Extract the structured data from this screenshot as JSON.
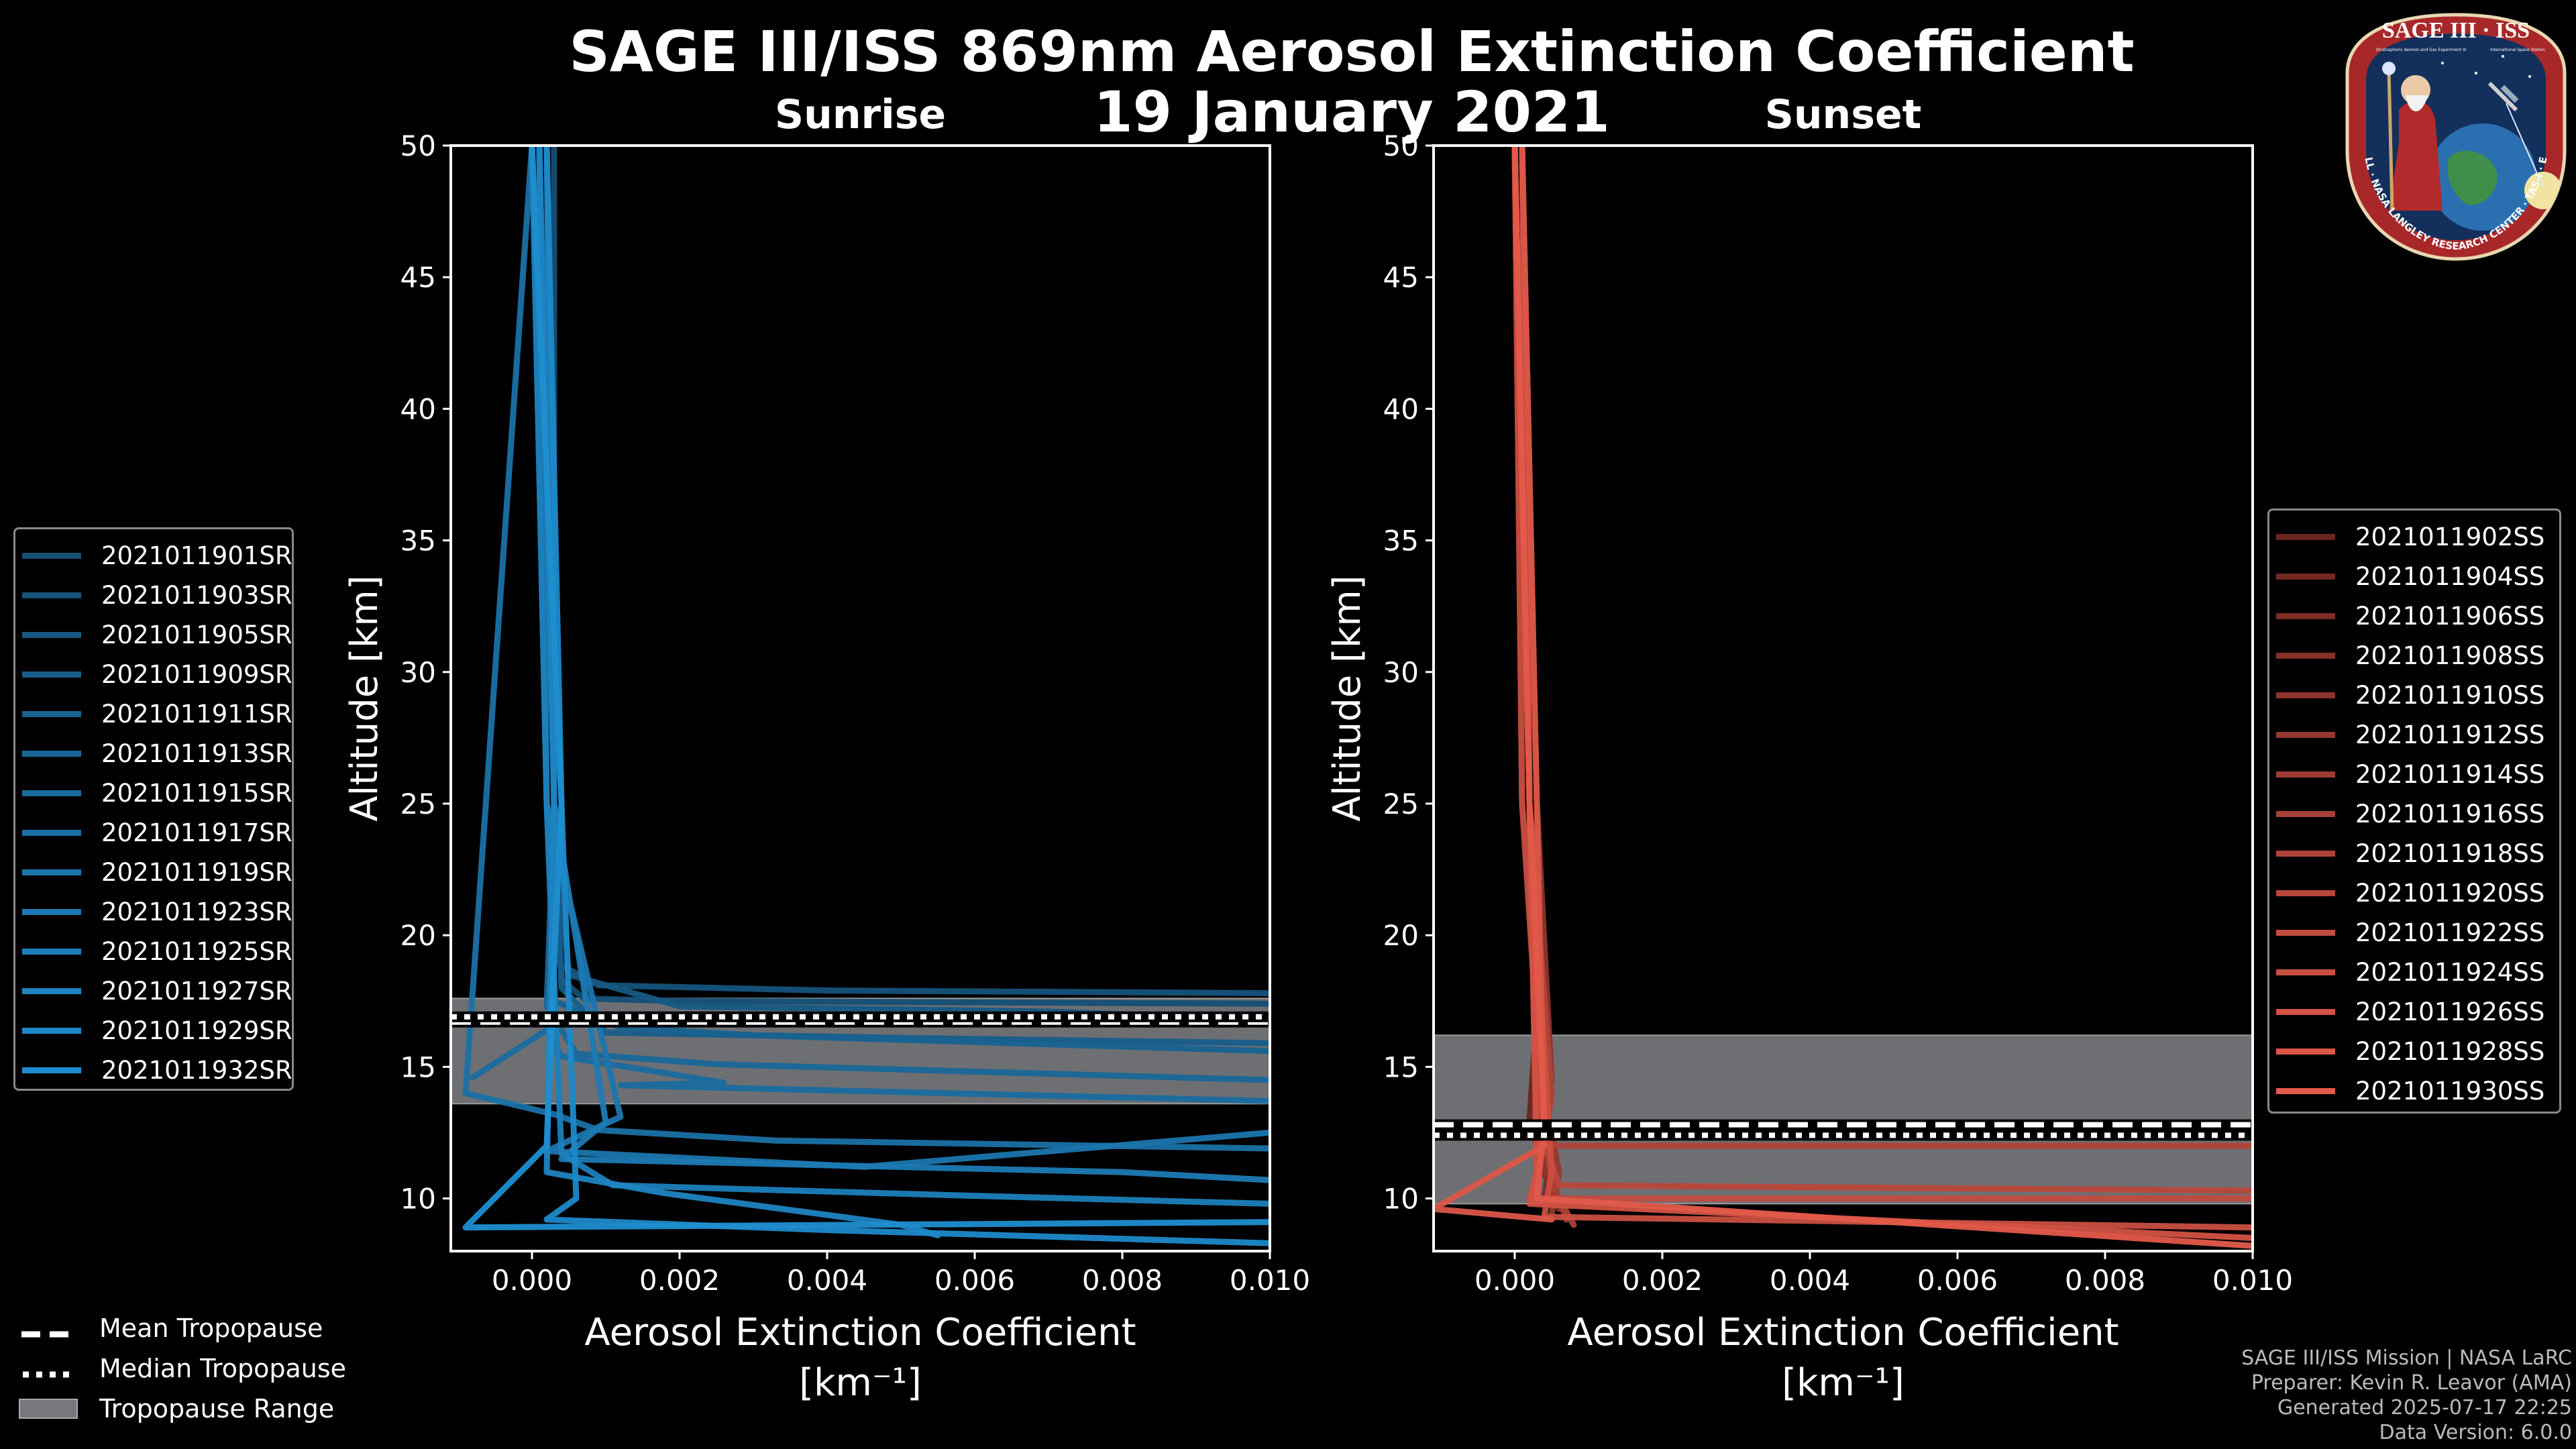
{
  "header": {
    "title": "SAGE III/ISS 869nm Aerosol Extinction Coefficient",
    "date": "19 January 2021"
  },
  "credits": {
    "line1": "SAGE III/ISS Mission | NASA LaRC",
    "line2": "Preparer: Kevin R. Leavor (AMA)",
    "line3": "Generated 2025-07-17 22:25",
    "line4": "Data Version: 6.0.0"
  },
  "logo": {
    "name": "SAGE III · ISS",
    "ring_text": "BALL · NASA LANGLEY RESEARCH CENTER · TAS-I · ESA",
    "small_left": "Stratospheric Aerosol and Gas Experiment III",
    "small_right": "International Space Station"
  },
  "colors": {
    "background": "#000000",
    "sunrise_line": "#1f8ed0",
    "sunset_line": "#e35a4a",
    "tropopause_band": "#6e6f73"
  },
  "bottom_legend": {
    "mean": "Mean Tropopause",
    "median": "Median Tropopause",
    "range": "Tropopause Range"
  },
  "chart_data": [
    {
      "type": "line",
      "panel": "sunrise",
      "title": "Sunrise",
      "xlabel": "Aerosol Extinction Coefficient",
      "xunits": "[km⁻¹]",
      "ylabel": "Altitude [km]",
      "xlim": [
        -0.0011,
        0.01
      ],
      "ylim": [
        8,
        50
      ],
      "xticks": [
        0.0,
        0.002,
        0.004,
        0.006,
        0.008,
        0.01
      ],
      "xtick_labels": [
        "0.000",
        "0.002",
        "0.004",
        "0.006",
        "0.008",
        "0.010"
      ],
      "yticks": [
        10,
        15,
        20,
        25,
        30,
        35,
        40,
        45,
        50
      ],
      "tropopause": {
        "mean": 16.7,
        "median": 16.9,
        "range": [
          13.6,
          17.6
        ]
      },
      "legend_placement": "left",
      "series": [
        {
          "name": "2021011901SR",
          "x": [
            0.0003,
            0.0003,
            0.0004,
            0.0007,
            0.002,
            0.01
          ],
          "y": [
            50,
            25,
            18.3,
            17.6,
            17.5,
            17.4
          ]
        },
        {
          "name": "2021011903SR",
          "x": [
            0.0001,
            0.0002,
            0.0003,
            0.0009,
            0.004,
            0.01
          ],
          "y": [
            50,
            25,
            19,
            18.1,
            17.9,
            17.8
          ]
        },
        {
          "name": "2021011905SR",
          "x": [
            0.0002,
            0.0003,
            0.0005,
            0.002,
            0.007,
            0.008
          ],
          "y": [
            50,
            25,
            18.5,
            17.3,
            17.1,
            17
          ]
        },
        {
          "name": "2021011909SR",
          "x": [
            0.0001,
            0.0003,
            0.0004,
            0.001,
            0.005,
            0.01
          ],
          "y": [
            50,
            25,
            18,
            16.3,
            16.1,
            15.9
          ]
        },
        {
          "name": "2021011911SR",
          "x": [
            0.0,
            0.0002,
            0.0003,
            0.0012,
            0.003,
            0.01
          ],
          "y": [
            50,
            25,
            17.5,
            16.5,
            16.2,
            15.6
          ]
        },
        {
          "name": "2021011913SR",
          "x": [
            0.0001,
            0.0003,
            0.0002,
            0.0006,
            0.0025,
            0.01
          ],
          "y": [
            50,
            25,
            17.3,
            15.5,
            15.1,
            14.5
          ]
        },
        {
          "name": "2021011915SR",
          "x": [
            -0.0008,
            0.0002,
            0.0004,
            0.0026,
            0.0012,
            0.01
          ],
          "y": [
            14.6,
            16.4,
            15.4,
            14.4,
            14.3,
            13.7
          ]
        },
        {
          "name": "2021011917SR",
          "x": [
            0.0,
            -0.0009,
            0.0003,
            0.0009,
            0.0033,
            0.01
          ],
          "y": [
            50,
            14,
            13.2,
            12.6,
            12.2,
            11.9
          ]
        },
        {
          "name": "2021011919SR",
          "x": [
            0.0001,
            0.0002,
            0.0012,
            0.0002,
            0.0045,
            0.01
          ],
          "y": [
            50,
            25,
            13.1,
            11.8,
            11.2,
            12.5
          ]
        },
        {
          "name": "2021011923SR",
          "x": [
            0.0002,
            0.0003,
            0.001,
            0.0004,
            0.008,
            0.01
          ],
          "y": [
            50,
            25,
            12.9,
            11.5,
            11,
            10.7
          ]
        },
        {
          "name": "2021011925SR",
          "x": [
            0.0,
            0.0002,
            0.0004,
            0.0011,
            0.006,
            0.01
          ],
          "y": [
            50,
            25,
            11.7,
            10.5,
            10.1,
            9.8
          ]
        },
        {
          "name": "2021011927SR",
          "x": [
            0.0001,
            0.0003,
            0.0002,
            0.0018,
            0.005,
            0.0055
          ],
          "y": [
            50,
            25,
            11,
            10.2,
            9,
            8.6
          ]
        },
        {
          "name": "2021011929SR",
          "x": [
            0.0002,
            0.0004,
            0.0006,
            0.0002,
            0.004,
            0.01
          ],
          "y": [
            50,
            25,
            10,
            9.2,
            8.8,
            8.3
          ]
        },
        {
          "name": "2021011932SR",
          "x": [
            0.0,
            0.0004,
            0.0003,
            0.0002,
            -0.0009,
            0.01
          ],
          "y": [
            50,
            25,
            19,
            12,
            8.9,
            9.1
          ]
        }
      ]
    },
    {
      "type": "line",
      "panel": "sunset",
      "title": "Sunset",
      "xlabel": "Aerosol Extinction Coefficient",
      "xunits": "[km⁻¹]",
      "ylabel": "Altitude [km]",
      "xlim": [
        -0.0011,
        0.01
      ],
      "ylim": [
        8,
        50
      ],
      "xticks": [
        0.0,
        0.002,
        0.004,
        0.006,
        0.008,
        0.01
      ],
      "xtick_labels": [
        "0.000",
        "0.002",
        "0.004",
        "0.006",
        "0.008",
        "0.010"
      ],
      "yticks": [
        10,
        15,
        20,
        25,
        30,
        35,
        40,
        45,
        50
      ],
      "tropopause": {
        "mean": 12.8,
        "median": 12.4,
        "range": [
          9.8,
          16.2
        ]
      },
      "legend_placement": "right",
      "series": [
        {
          "name": "2021011902SS",
          "x": [
            0.0,
            0.0001,
            0.0003,
            0.0002,
            0.0004
          ],
          "y": [
            50,
            25,
            17,
            13,
            11
          ]
        },
        {
          "name": "2021011904SS",
          "x": [
            0.0,
            0.0002,
            0.0004,
            0.0003,
            0.0005
          ],
          "y": [
            50,
            25,
            16,
            12.5,
            10.5
          ]
        },
        {
          "name": "2021011906SS",
          "x": [
            0.0001,
            0.0002,
            0.0003,
            0.0005,
            0.0004
          ],
          "y": [
            50,
            25,
            15.5,
            12,
            10
          ]
        },
        {
          "name": "2021011908SS",
          "x": [
            0.0,
            0.0001,
            0.0004,
            0.0003,
            0.0006
          ],
          "y": [
            50,
            25,
            15,
            11.5,
            9.8
          ]
        },
        {
          "name": "2021011910SS",
          "x": [
            0.0001,
            0.0003,
            0.0005,
            0.0004,
            0.0006
          ],
          "y": [
            50,
            25,
            14.5,
            11.2,
            9.6
          ]
        },
        {
          "name": "2021011912SS",
          "x": [
            0.0,
            0.0002,
            0.0004,
            0.0006,
            0.0005
          ],
          "y": [
            50,
            25,
            14,
            11,
            9.4
          ]
        },
        {
          "name": "2021011914SS",
          "x": [
            0.0001,
            0.0002,
            0.0003,
            0.0005,
            0.0007
          ],
          "y": [
            50,
            25,
            13.5,
            10.8,
            9.2
          ]
        },
        {
          "name": "2021011916SS",
          "x": [
            0.0,
            0.0001,
            0.0004,
            0.0005,
            0.0008
          ],
          "y": [
            50,
            25,
            13,
            10.5,
            9
          ]
        },
        {
          "name": "2021011918SS",
          "x": [
            0.0001,
            0.0002,
            0.0005,
            0.0004,
            0.01
          ],
          "y": [
            50,
            25,
            14,
            12,
            12
          ]
        },
        {
          "name": "2021011920SS",
          "x": [
            0.0,
            0.0002,
            0.0003,
            0.0006,
            0.01
          ],
          "y": [
            50,
            25,
            13,
            10.5,
            10.3
          ]
        },
        {
          "name": "2021011922SS",
          "x": [
            0.0,
            0.0001,
            0.0004,
            0.0002,
            0.01
          ],
          "y": [
            50,
            25,
            12,
            10,
            10.0
          ]
        },
        {
          "name": "2021011924SS",
          "x": [
            0.0001,
            0.0002,
            0.0005,
            0.0004,
            0.01
          ],
          "y": [
            50,
            25,
            11,
            9.3,
            8.9
          ]
        },
        {
          "name": "2021011926SS",
          "x": [
            0.0,
            0.0002,
            0.0003,
            0.0002,
            0.01
          ],
          "y": [
            50,
            25,
            11,
            9.8,
            8.5
          ]
        },
        {
          "name": "2021011928SS",
          "x": [
            0.0001,
            0.0003,
            0.0004,
            -0.0011,
            0.0005
          ],
          "y": [
            50,
            25,
            12,
            9.6,
            9.2
          ]
        },
        {
          "name": "2021011930SS",
          "x": [
            0.0,
            0.0002,
            0.0004,
            0.0003,
            0.01
          ],
          "y": [
            50,
            25,
            13,
            10,
            8.2
          ]
        }
      ]
    }
  ]
}
